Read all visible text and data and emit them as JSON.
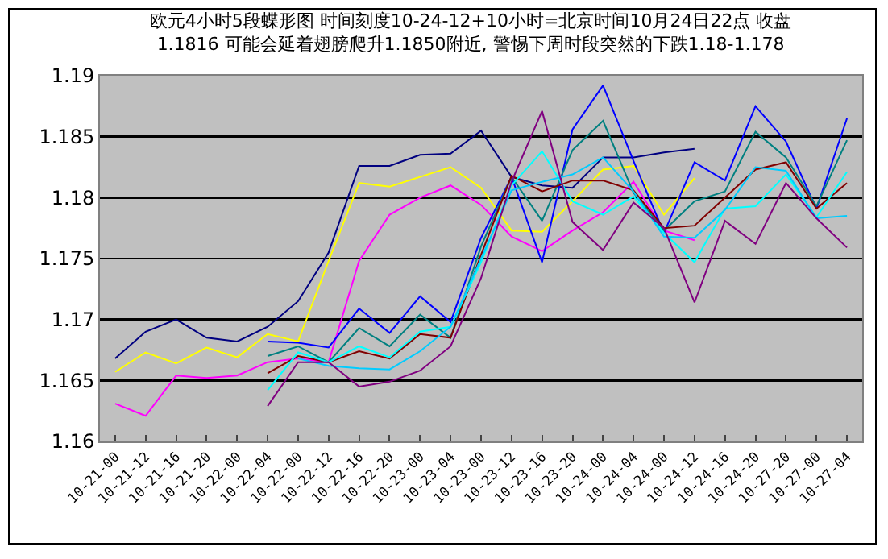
{
  "chart_data": {
    "type": "line",
    "title": "欧元4小时5段蝶形图 时间刻度10-24-12+10小时=北京时间10月24日22点 收盘\n1.1816 可能会延着翅膀爬升1.1850附近, 警惕下周时段突然的下跌1.18-1.178",
    "categories": [
      "10-21-00",
      "10-21-12",
      "10-21-16",
      "10-21-20",
      "10-22-00",
      "10-22-04",
      "10-22-00",
      "10-22-12",
      "10-22-16",
      "10-22-20",
      "10-23-00",
      "10-23-04",
      "10-23-00",
      "10-23-12",
      "10-23-16",
      "10-23-20",
      "10-24-00",
      "10-24-04",
      "10-24-00",
      "10-24-12",
      "10-24-16",
      "10-24-20",
      "10-27-20",
      "10-27-00",
      "10-27-04"
    ],
    "series": [
      {
        "color": "#000080",
        "values": [
          1.1668,
          1.169,
          1.17,
          1.1685,
          1.1682,
          1.1694,
          1.1715,
          1.1755,
          1.1826,
          1.1826,
          1.1835,
          1.1836,
          1.1855,
          1.1817,
          1.181,
          1.1808,
          1.1833,
          1.1833,
          1.1837,
          1.184,
          null,
          null,
          null,
          null,
          null
        ]
      },
      {
        "color": "#ffff00",
        "values": [
          1.1657,
          1.1673,
          1.1664,
          1.1677,
          1.1669,
          1.1688,
          1.1682,
          1.1748,
          1.1812,
          1.1809,
          1.1817,
          1.1825,
          1.1808,
          1.1773,
          1.1772,
          1.1797,
          1.1823,
          1.1826,
          1.1786,
          1.1816,
          null,
          null,
          null,
          null,
          null
        ]
      },
      {
        "color": "#ff00ff",
        "values": [
          1.1631,
          1.1621,
          1.1654,
          1.1652,
          1.1654,
          1.1665,
          1.1668,
          1.1665,
          1.1748,
          1.1786,
          1.18,
          1.181,
          1.1794,
          1.1768,
          1.1756,
          1.1773,
          1.1788,
          1.1813,
          1.1773,
          1.1765,
          null,
          null,
          null,
          null,
          null
        ]
      },
      {
        "color": "#0000ff",
        "values": [
          null,
          null,
          null,
          null,
          null,
          1.1682,
          1.1681,
          1.1677,
          1.1709,
          1.1689,
          1.1719,
          1.1698,
          1.1767,
          1.1817,
          1.1747,
          1.1856,
          1.1892,
          1.183,
          1.1771,
          1.1829,
          1.1814,
          1.1875,
          1.1846,
          1.1791,
          1.1865
        ]
      },
      {
        "color": "#008080",
        "values": [
          null,
          null,
          null,
          null,
          null,
          1.167,
          1.1678,
          1.1665,
          1.1693,
          1.1678,
          1.1704,
          1.1685,
          1.176,
          1.1817,
          1.1781,
          1.1839,
          1.1863,
          1.1804,
          1.1773,
          1.1797,
          1.1805,
          1.1854,
          1.1833,
          1.1793,
          1.1847
        ]
      },
      {
        "color": "#800000",
        "values": [
          null,
          null,
          null,
          null,
          null,
          1.1656,
          1.167,
          1.1665,
          1.1674,
          1.1668,
          1.1688,
          1.1685,
          1.1753,
          1.1818,
          1.1805,
          1.1814,
          1.1814,
          1.1806,
          1.1775,
          1.1777,
          1.18,
          1.1823,
          1.1829,
          1.1791,
          1.1812
        ]
      },
      {
        "color": "#00ffff",
        "values": [
          null,
          null,
          null,
          null,
          null,
          1.1642,
          1.1673,
          1.1665,
          1.1678,
          1.1669,
          1.169,
          1.1694,
          1.1747,
          1.181,
          1.1838,
          1.1797,
          1.1786,
          1.1801,
          1.1771,
          1.1747,
          1.1791,
          1.1793,
          1.1819,
          1.1784,
          1.1821
        ]
      },
      {
        "color": "#00ccff",
        "values": [
          null,
          null,
          null,
          null,
          null,
          null,
          1.1668,
          1.1662,
          1.166,
          1.1659,
          1.1674,
          1.1694,
          1.175,
          1.1806,
          1.1813,
          1.1819,
          1.1833,
          1.1805,
          1.1768,
          1.1767,
          1.179,
          1.1825,
          1.1822,
          1.1783,
          1.1785
        ]
      },
      {
        "color": "#800080",
        "values": [
          null,
          null,
          null,
          null,
          null,
          1.1629,
          1.1665,
          1.1665,
          1.1645,
          1.1649,
          1.1658,
          1.1678,
          1.1734,
          1.1813,
          1.1871,
          1.178,
          1.1757,
          1.1796,
          1.1775,
          1.1714,
          1.1781,
          1.1762,
          1.1812,
          1.1783,
          1.1759
        ]
      }
    ],
    "ylim": [
      1.16,
      1.19
    ],
    "yticks": [
      1.16,
      1.165,
      1.17,
      1.175,
      1.18,
      1.185,
      1.19
    ],
    "grid": "y",
    "marker": "none",
    "line_style": "solid"
  }
}
